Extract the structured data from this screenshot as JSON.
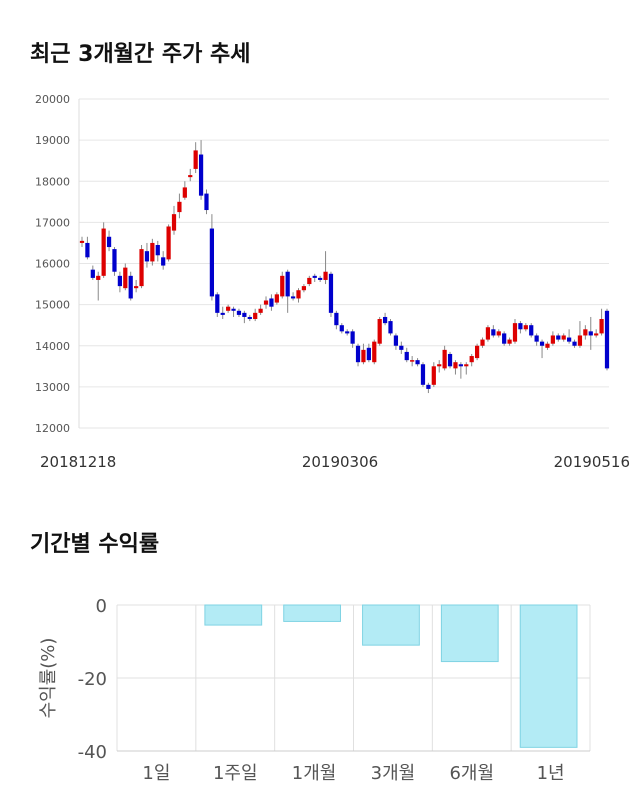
{
  "titles": {
    "price_trend": "최근 3개월간 주가 추세",
    "returns": "기간별 수익률"
  },
  "chart_data": [
    {
      "type": "candlestick",
      "title": "최근 3개월간 주가 추세",
      "x_labels": [
        "20181218",
        "20190306",
        "20190516"
      ],
      "y_ticks": [
        12000,
        13000,
        14000,
        15000,
        16000,
        17000,
        18000,
        19000,
        20000
      ],
      "ylim": [
        12000,
        20000
      ],
      "grid": true,
      "colors": {
        "up": "#dd0000",
        "down": "#0000cc",
        "wick": "#888888",
        "grid": "#e6e6e6"
      },
      "candles": [
        [
          16500,
          16550,
          16400,
          16650
        ],
        [
          16500,
          16150,
          16100,
          16650
        ],
        [
          15850,
          15650,
          15600,
          15950
        ],
        [
          15600,
          15700,
          15100,
          15800
        ],
        [
          15700,
          16850,
          15650,
          17000
        ],
        [
          16650,
          16400,
          16300,
          16800
        ],
        [
          16350,
          15800,
          15700,
          16400
        ],
        [
          15700,
          15450,
          15300,
          15800
        ],
        [
          15400,
          15900,
          15350,
          16000
        ],
        [
          15700,
          15150,
          15100,
          15800
        ],
        [
          15400,
          15450,
          15300,
          15600
        ],
        [
          15450,
          16350,
          15400,
          16450
        ],
        [
          16300,
          16050,
          15900,
          16500
        ],
        [
          16050,
          16500,
          15950,
          16600
        ],
        [
          16450,
          16200,
          16050,
          16550
        ],
        [
          16150,
          15950,
          15850,
          16300
        ],
        [
          16100,
          16900,
          16050,
          16950
        ],
        [
          16800,
          17200,
          16700,
          17400
        ],
        [
          17250,
          17500,
          17100,
          17700
        ],
        [
          17600,
          17850,
          17550,
          18000
        ],
        [
          18100,
          18150,
          18000,
          18300
        ],
        [
          18300,
          18750,
          18200,
          18950
        ],
        [
          18650,
          17650,
          17550,
          19000
        ],
        [
          17700,
          17300,
          17200,
          17800
        ],
        [
          16850,
          15200,
          15100,
          17200
        ],
        [
          15250,
          14800,
          14700,
          15300
        ],
        [
          14800,
          14750,
          14650,
          14950
        ],
        [
          14850,
          14950,
          14800,
          15000
        ],
        [
          14900,
          14850,
          14700,
          14950
        ],
        [
          14850,
          14750,
          14700,
          14900
        ],
        [
          14800,
          14700,
          14550,
          14850
        ],
        [
          14700,
          14650,
          14600,
          14750
        ],
        [
          14650,
          14800,
          14600,
          14900
        ],
        [
          14800,
          14900,
          14750,
          15000
        ],
        [
          15000,
          15100,
          14900,
          15200
        ],
        [
          15150,
          14950,
          14850,
          15250
        ],
        [
          15050,
          15250,
          15000,
          15300
        ],
        [
          15200,
          15700,
          15150,
          15800
        ],
        [
          15800,
          15200,
          14800,
          15850
        ],
        [
          15200,
          15150,
          15100,
          15300
        ],
        [
          15150,
          15350,
          15050,
          15400
        ],
        [
          15350,
          15450,
          15300,
          15500
        ],
        [
          15500,
          15650,
          15450,
          15700
        ],
        [
          15700,
          15650,
          15550,
          15750
        ],
        [
          15650,
          15600,
          15550,
          15700
        ],
        [
          15600,
          15800,
          15500,
          16300
        ],
        [
          15750,
          14800,
          14700,
          15800
        ],
        [
          14800,
          14500,
          14400,
          14850
        ],
        [
          14500,
          14350,
          14300,
          14550
        ],
        [
          14350,
          14300,
          14250,
          14400
        ],
        [
          14350,
          14050,
          13950,
          14400
        ],
        [
          14000,
          13600,
          13500,
          14050
        ],
        [
          13600,
          13900,
          13550,
          14050
        ],
        [
          13950,
          13650,
          13600,
          14050
        ],
        [
          13600,
          14100,
          13550,
          14150
        ],
        [
          14050,
          14650,
          14000,
          14700
        ],
        [
          14700,
          14550,
          14500,
          14800
        ],
        [
          14600,
          14300,
          14250,
          14650
        ],
        [
          14250,
          14000,
          13900,
          14300
        ],
        [
          14000,
          13900,
          13800,
          14100
        ],
        [
          13850,
          13650,
          13600,
          13950
        ],
        [
          13650,
          13650,
          13500,
          13750
        ],
        [
          13650,
          13550,
          13500,
          13700
        ],
        [
          13550,
          13050,
          13000,
          13600
        ],
        [
          13050,
          12950,
          12850,
          13100
        ],
        [
          13050,
          13500,
          13000,
          13600
        ],
        [
          13500,
          13550,
          13350,
          13650
        ],
        [
          13450,
          13900,
          13400,
          14000
        ],
        [
          13800,
          13500,
          13450,
          13850
        ],
        [
          13450,
          13600,
          13300,
          13650
        ],
        [
          13550,
          13500,
          13200,
          13600
        ],
        [
          13500,
          13550,
          13300,
          13600
        ],
        [
          13600,
          13750,
          13500,
          13800
        ],
        [
          13700,
          14000,
          13650,
          14050
        ],
        [
          14000,
          14150,
          13950,
          14200
        ],
        [
          14150,
          14450,
          14100,
          14500
        ],
        [
          14400,
          14250,
          14200,
          14500
        ],
        [
          14250,
          14350,
          14200,
          14400
        ],
        [
          14300,
          14050,
          14000,
          14350
        ],
        [
          14050,
          14150,
          14000,
          14200
        ],
        [
          14100,
          14550,
          14050,
          14650
        ],
        [
          14550,
          14400,
          14300,
          14600
        ],
        [
          14400,
          14500,
          14350,
          14550
        ],
        [
          14500,
          14250,
          14200,
          14550
        ],
        [
          14250,
          14100,
          14000,
          14300
        ],
        [
          14100,
          14000,
          13700,
          14150
        ],
        [
          13950,
          14050,
          13900,
          14100
        ],
        [
          14050,
          14250,
          14000,
          14350
        ],
        [
          14250,
          14150,
          14100,
          14300
        ],
        [
          14150,
          14250,
          14100,
          14300
        ],
        [
          14200,
          14100,
          14050,
          14400
        ],
        [
          14100,
          14000,
          13950,
          14150
        ],
        [
          14000,
          14250,
          13950,
          14600
        ],
        [
          14250,
          14400,
          14150,
          14500
        ],
        [
          14350,
          14250,
          13900,
          14700
        ],
        [
          14250,
          14300,
          14200,
          14400
        ],
        [
          14300,
          14650,
          14250,
          14900
        ],
        [
          14850,
          13450,
          13400,
          14900
        ]
      ]
    },
    {
      "type": "bar",
      "title": "기간별 수익률",
      "ylabel": "수익률(%)",
      "categories": [
        "1일",
        "1주일",
        "1개월",
        "3개월",
        "6개월",
        "1년"
      ],
      "values": [
        0,
        -5.5,
        -4.5,
        -11,
        -15.5,
        -39
      ],
      "y_ticks": [
        0,
        -20,
        -40
      ],
      "ylim": [
        -40,
        0
      ],
      "grid": true,
      "colors": {
        "fill": "#b3ebf5",
        "stroke": "#7fd3e3",
        "grid": "#e0e0e0"
      }
    }
  ]
}
